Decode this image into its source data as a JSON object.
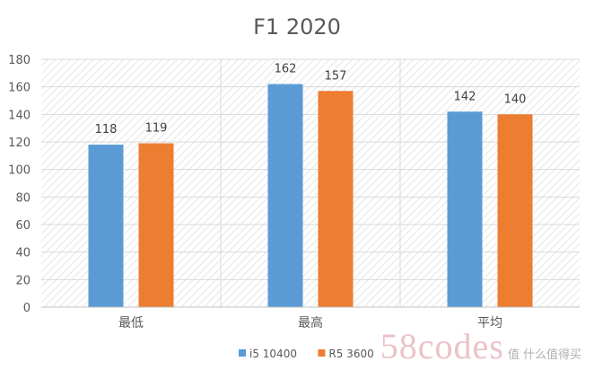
{
  "chart_data": {
    "type": "bar",
    "title": "F1 2020",
    "categories": [
      "最低",
      "最高",
      "平均"
    ],
    "series": [
      {
        "name": "i5 10400",
        "values": [
          118,
          162,
          142
        ],
        "color": "#5b9bd5"
      },
      {
        "name": "R5 3600",
        "values": [
          119,
          157,
          140
        ],
        "color": "#ed7d31"
      }
    ],
    "ylim": [
      0,
      180
    ],
    "yticks": [
      0,
      20,
      40,
      60,
      80,
      100,
      120,
      140,
      160,
      180
    ],
    "grid": true,
    "legend_position": "bottom",
    "data_labels": true
  },
  "watermark": {
    "text": "58codes",
    "subtext": "值 什么值得买"
  }
}
